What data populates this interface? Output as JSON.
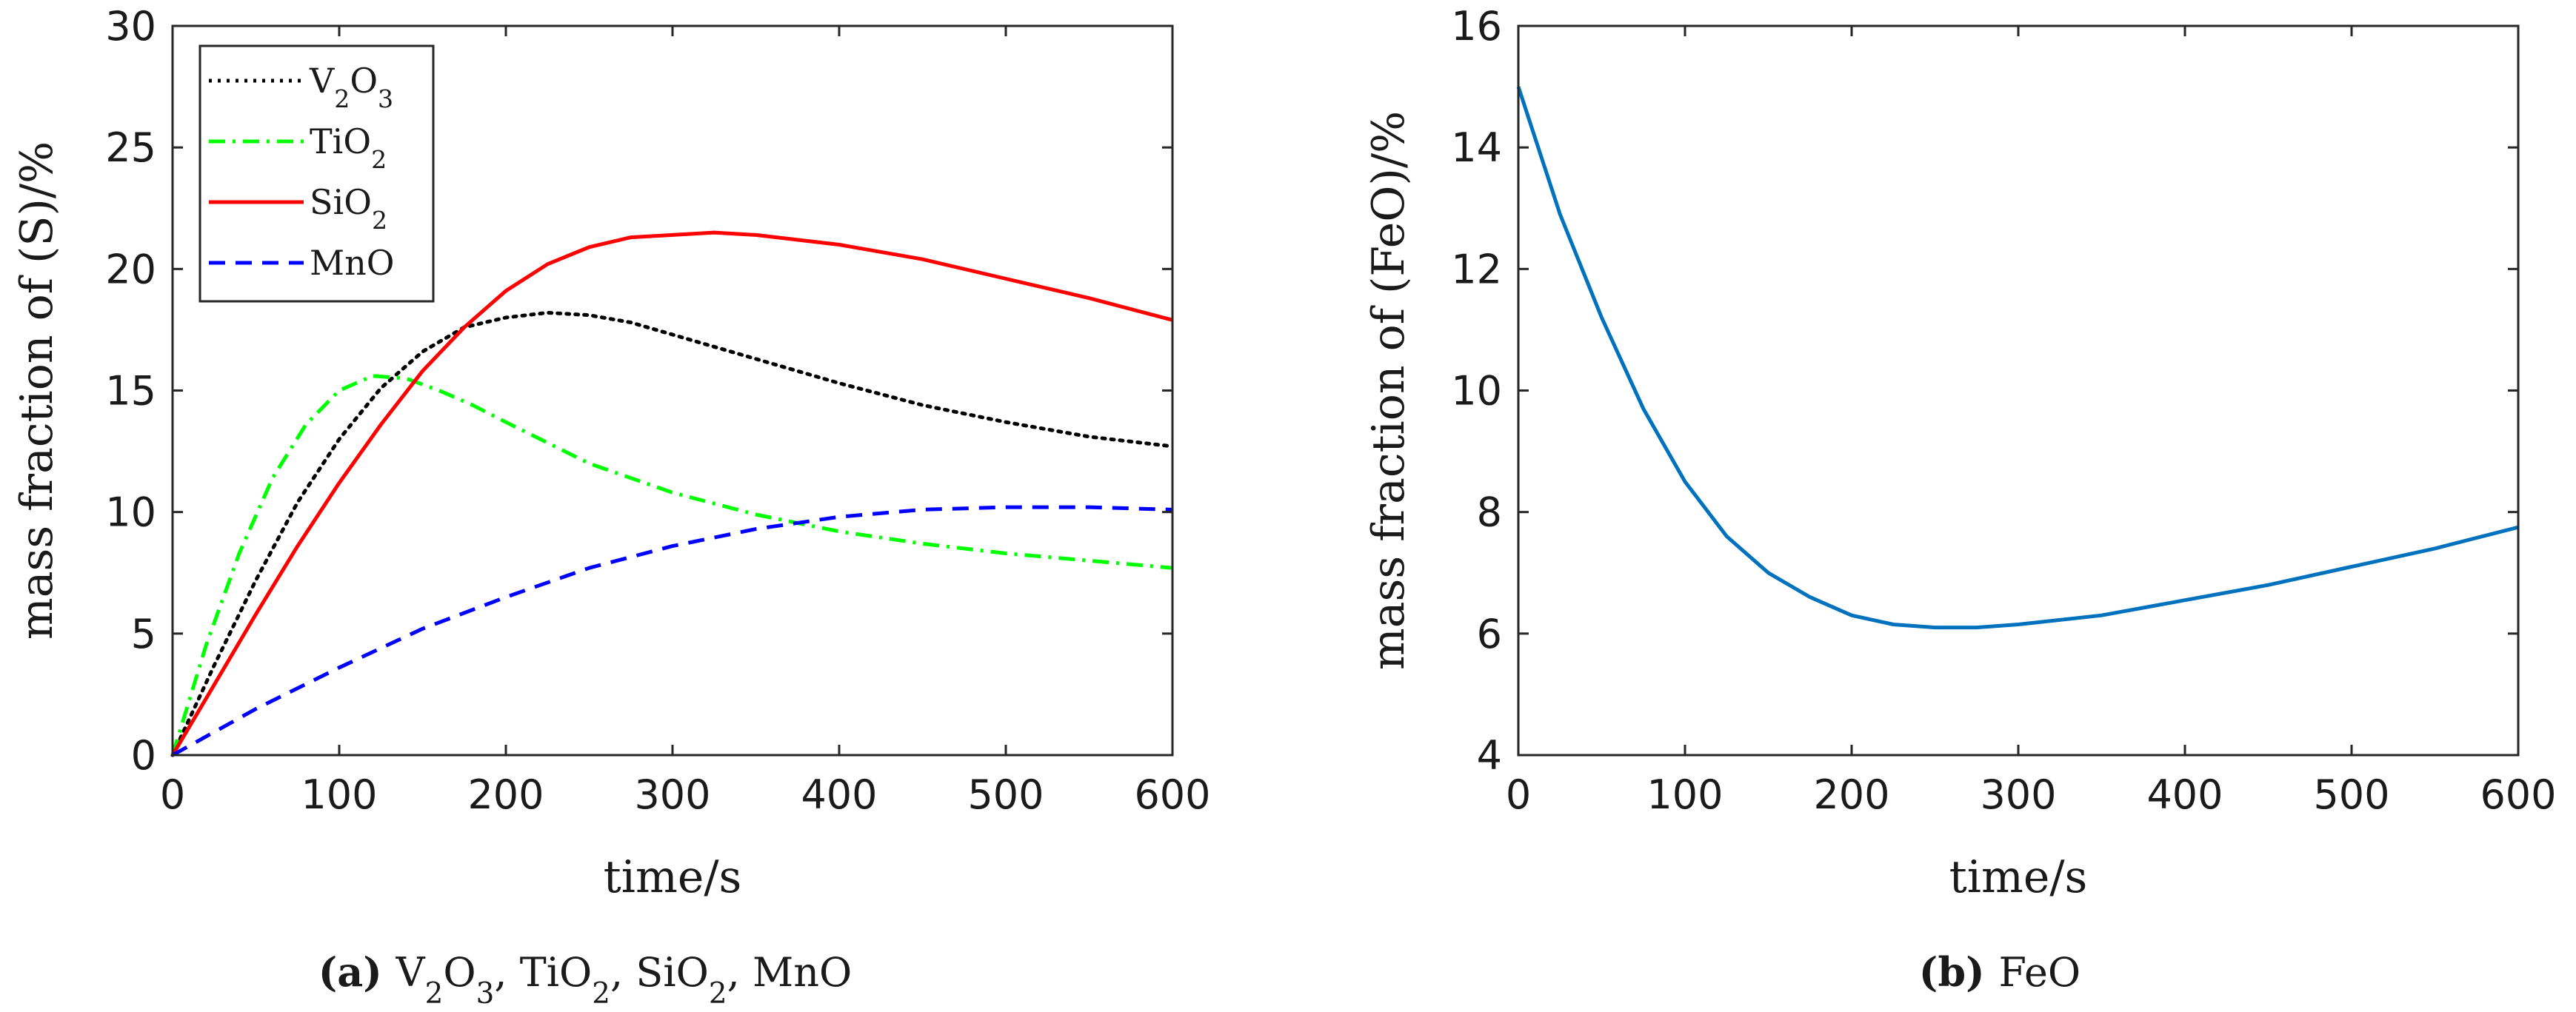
{
  "chart_data": [
    {
      "type": "line",
      "panel": "a",
      "xlabel": "time/s",
      "ylabel": "mass fraction of (S)/%",
      "xlim": [
        0,
        600
      ],
      "ylim": [
        0,
        30
      ],
      "xticks": [
        0,
        100,
        200,
        300,
        400,
        500,
        600
      ],
      "yticks": [
        0,
        5,
        10,
        15,
        20,
        25,
        30
      ],
      "legend": {
        "placement": "top-left"
      },
      "series": [
        {
          "name": "V2O3",
          "sub": [
            "V",
            "2",
            "O",
            "3"
          ],
          "color": "#000000",
          "style": "dotted",
          "x": [
            0,
            25,
            50,
            75,
            100,
            125,
            150,
            175,
            200,
            225,
            250,
            275,
            300,
            350,
            400,
            450,
            500,
            550,
            600
          ],
          "y": [
            0,
            3.7,
            7.2,
            10.4,
            13.0,
            15.1,
            16.6,
            17.6,
            18.0,
            18.2,
            18.1,
            17.8,
            17.3,
            16.3,
            15.3,
            14.4,
            13.7,
            13.1,
            12.7
          ]
        },
        {
          "name": "TiO2",
          "sub": [
            "Ti",
            "O",
            "2"
          ],
          "color": "#00ff00",
          "style": "dashdot",
          "x": [
            0,
            20,
            40,
            60,
            80,
            100,
            120,
            140,
            160,
            180,
            200,
            250,
            300,
            350,
            400,
            450,
            500,
            550,
            600
          ],
          "y": [
            0,
            4.5,
            8.3,
            11.4,
            13.6,
            15.0,
            15.6,
            15.5,
            15.0,
            14.4,
            13.7,
            12.0,
            10.8,
            9.9,
            9.2,
            8.7,
            8.3,
            8.0,
            7.7
          ]
        },
        {
          "name": "SiO2",
          "sub": [
            "Si",
            "O",
            "2"
          ],
          "color": "#ff0000",
          "style": "solid",
          "x": [
            0,
            25,
            50,
            75,
            100,
            125,
            150,
            175,
            200,
            225,
            250,
            275,
            300,
            325,
            350,
            400,
            450,
            500,
            550,
            600
          ],
          "y": [
            0,
            2.9,
            5.8,
            8.6,
            11.2,
            13.6,
            15.8,
            17.6,
            19.1,
            20.2,
            20.9,
            21.3,
            21.4,
            21.5,
            21.4,
            21.0,
            20.4,
            19.6,
            18.8,
            17.9
          ]
        },
        {
          "name": "MnO",
          "sub": [
            "MnO"
          ],
          "color": "#0000ff",
          "style": "dashed",
          "x": [
            0,
            50,
            100,
            150,
            200,
            250,
            300,
            350,
            400,
            450,
            500,
            550,
            600
          ],
          "y": [
            0,
            1.9,
            3.6,
            5.2,
            6.5,
            7.7,
            8.6,
            9.3,
            9.8,
            10.1,
            10.2,
            10.2,
            10.1
          ]
        }
      ],
      "caption": {
        "tag": "(a)",
        "items": [
          "V2O3",
          "TiO2",
          "SiO2",
          "MnO"
        ]
      }
    },
    {
      "type": "line",
      "panel": "b",
      "xlabel": "time/s",
      "ylabel": "mass fraction of (FeO)/%",
      "xlim": [
        0,
        600
      ],
      "ylim": [
        4,
        16
      ],
      "xticks": [
        0,
        100,
        200,
        300,
        400,
        500,
        600
      ],
      "yticks": [
        4,
        6,
        8,
        10,
        12,
        14,
        16
      ],
      "series": [
        {
          "name": "FeO",
          "color": "#0072bd",
          "style": "solid",
          "x": [
            0,
            25,
            50,
            75,
            100,
            125,
            150,
            175,
            200,
            225,
            250,
            275,
            300,
            350,
            400,
            450,
            500,
            550,
            600
          ],
          "y": [
            15.0,
            12.9,
            11.2,
            9.7,
            8.5,
            7.6,
            7.0,
            6.6,
            6.3,
            6.15,
            6.1,
            6.1,
            6.15,
            6.3,
            6.55,
            6.8,
            7.1,
            7.4,
            7.75
          ]
        }
      ],
      "caption": {
        "tag": "(b)",
        "items": [
          "FeO"
        ]
      }
    }
  ]
}
